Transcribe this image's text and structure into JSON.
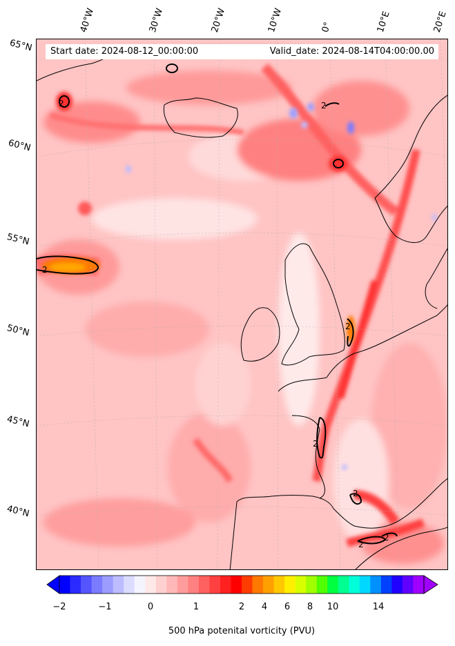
{
  "header": {
    "start_date": "Start date: 2024-08-12_00:00:00",
    "valid_date": "Valid_date: 2024-08-14T04:00:00.00"
  },
  "map": {
    "lat_labels": [
      "65°N",
      "60°N",
      "55°N",
      "50°N",
      "45°N",
      "40°N"
    ],
    "lon_labels": [
      "40°W",
      "30°W",
      "20°W",
      "10°W",
      "0°",
      "10°E",
      "20°E"
    ],
    "contour_label": "2"
  },
  "colorbar": {
    "ticks": [
      "−2",
      "−1",
      "0",
      "1",
      "2",
      "4",
      "6",
      "8",
      "10",
      "14"
    ],
    "label": "500 hPa potenital vorticity (PVU)",
    "colors": [
      "#0000ff",
      "#2b2bff",
      "#5555ff",
      "#7b7bff",
      "#9c9cff",
      "#bcbcff",
      "#dcdcff",
      "#f4f4ff",
      "#ffe8e8",
      "#ffd0d0",
      "#ffb8b8",
      "#ff9c9c",
      "#ff8080",
      "#ff6060",
      "#ff4040",
      "#ff2020",
      "#ff0000",
      "#ff3c00",
      "#ff7800",
      "#ffa000",
      "#ffc800",
      "#fff000",
      "#d8ff00",
      "#a0ff00",
      "#50ff00",
      "#00ff40",
      "#00ff90",
      "#00ffd8",
      "#00d8ff",
      "#0090ff",
      "#0040ff",
      "#2000ff",
      "#6000ff",
      "#a000ff"
    ]
  }
}
